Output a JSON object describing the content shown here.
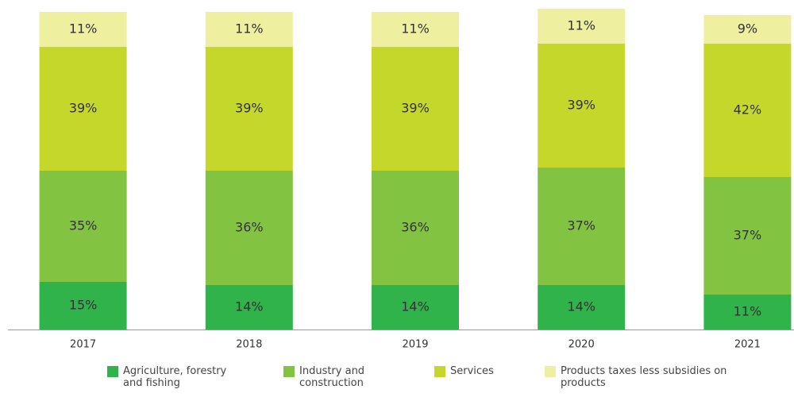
{
  "chart_data": {
    "type": "stacked_bar",
    "categories": [
      "2017",
      "2018",
      "2019",
      "2020",
      "2021"
    ],
    "series": [
      {
        "name": "Agriculture, forestry and fishing",
        "color": "#2fb34a",
        "values": [
          15,
          14,
          14,
          14,
          11
        ],
        "value_labels": [
          "15%",
          "14%",
          "14%",
          "14%",
          "11%"
        ]
      },
      {
        "name": "Industry and construction",
        "color": "#82c341",
        "values": [
          35,
          36,
          36,
          37,
          37
        ],
        "value_labels": [
          "35%",
          "36%",
          "36%",
          "37%",
          "37%"
        ]
      },
      {
        "name": "Services",
        "color": "#c6d72b",
        "values": [
          39,
          39,
          39,
          39,
          42
        ],
        "value_labels": [
          "39%",
          "39%",
          "39%",
          "39%",
          "42%"
        ]
      },
      {
        "name": "Products taxes less subsidies on products",
        "color": "#eeef9f",
        "values": [
          11,
          11,
          11,
          11,
          9
        ],
        "value_labels": [
          "11%",
          "11%",
          "11%",
          "11%",
          "9%"
        ]
      }
    ],
    "ylim": [
      0,
      100
    ]
  }
}
